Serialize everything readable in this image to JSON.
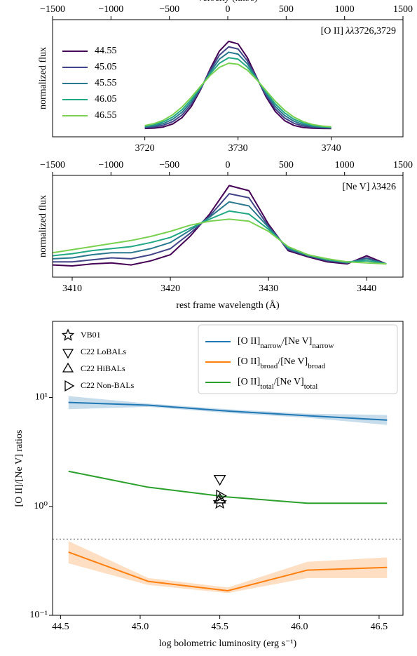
{
  "chart_data": [
    {
      "type": "line",
      "x2label": "velocity (km/s)",
      "ylabel": "normalized flux",
      "annotation_parts": [
        {
          "text": "[O II] "
        },
        {
          "text": "λλ",
          "italic": true
        },
        {
          "text": "3726,3729"
        }
      ],
      "x": [
        3720,
        3721,
        3722,
        3723,
        3724,
        3725,
        3726,
        3727,
        3728,
        3729,
        3730,
        3731,
        3732,
        3733,
        3734,
        3735,
        3736,
        3737,
        3738,
        3739,
        3740
      ],
      "xlim": [
        3710.1,
        3747.7
      ],
      "xticks": [
        3720,
        3730,
        3740
      ],
      "x2lim": [
        -1500,
        1500
      ],
      "x2ticks": [
        {
          "value": -1500,
          "label": "−1500"
        },
        {
          "value": -1000,
          "label": "−1000"
        },
        {
          "value": -500,
          "label": "−500"
        },
        0,
        500,
        1000,
        1500
      ],
      "ylim": [
        0,
        1
      ],
      "legend": "upper left",
      "series": [
        {
          "name": "44.55",
          "color": "#440154",
          "values": [
            0.071,
            0.074,
            0.084,
            0.11,
            0.164,
            0.26,
            0.405,
            0.577,
            0.732,
            0.815,
            0.793,
            0.676,
            0.507,
            0.342,
            0.216,
            0.138,
            0.097,
            0.079,
            0.073,
            0.071,
            0.07
          ]
        },
        {
          "name": "45.05",
          "color": "#414487",
          "values": [
            0.077,
            0.084,
            0.099,
            0.13,
            0.187,
            0.28,
            0.412,
            0.564,
            0.697,
            0.768,
            0.75,
            0.649,
            0.502,
            0.355,
            0.238,
            0.16,
            0.115,
            0.092,
            0.081,
            0.076,
            0.074
          ]
        },
        {
          "name": "45.55",
          "color": "#2a788e",
          "values": [
            0.084,
            0.094,
            0.113,
            0.15,
            0.21,
            0.3,
            0.419,
            0.55,
            0.663,
            0.722,
            0.706,
            0.623,
            0.498,
            0.369,
            0.26,
            0.182,
            0.133,
            0.104,
            0.089,
            0.082,
            0.078
          ]
        },
        {
          "name": "46.05",
          "color": "#22a884",
          "values": [
            0.09,
            0.103,
            0.128,
            0.169,
            0.232,
            0.319,
            0.426,
            0.537,
            0.628,
            0.675,
            0.663,
            0.596,
            0.493,
            0.382,
            0.281,
            0.204,
            0.15,
            0.117,
            0.097,
            0.087,
            0.081
          ]
        },
        {
          "name": "46.55",
          "color": "#7ad151",
          "values": [
            0.096,
            0.113,
            0.142,
            0.189,
            0.255,
            0.339,
            0.433,
            0.523,
            0.593,
            0.628,
            0.619,
            0.569,
            0.488,
            0.395,
            0.303,
            0.226,
            0.168,
            0.129,
            0.105,
            0.092,
            0.085
          ]
        }
      ]
    },
    {
      "type": "line",
      "xlabel": "rest frame wavelength (Å)",
      "ylabel": "normalized flux",
      "annotation_parts": [
        {
          "text": "[Ne V] "
        },
        {
          "text": "λ",
          "italic": true
        },
        {
          "text": "3426"
        }
      ],
      "x": [
        3408,
        3410,
        3412,
        3414,
        3416,
        3418,
        3420,
        3422,
        3424,
        3426,
        3428,
        3430,
        3432,
        3434,
        3436,
        3438,
        3440,
        3442
      ],
      "xlim": [
        3408,
        3443.7
      ],
      "xticks": [
        3410,
        3420,
        3430,
        3440
      ],
      "x2lim": [
        -1500,
        1500
      ],
      "x2ticks": [
        {
          "value": -1500,
          "label": "−1500"
        },
        {
          "value": -1000,
          "label": "−1000"
        },
        {
          "value": -500,
          "label": "−500"
        },
        0,
        500,
        1000,
        1500
      ],
      "ylim": [
        0,
        1
      ],
      "series": [
        {
          "color": "#440154",
          "values": [
            0.12,
            0.11,
            0.13,
            0.14,
            0.12,
            0.16,
            0.22,
            0.4,
            0.62,
            0.9,
            0.85,
            0.52,
            0.26,
            0.2,
            0.15,
            0.13,
            0.21,
            0.13
          ]
        },
        {
          "color": "#414487",
          "values": [
            0.15,
            0.15,
            0.17,
            0.19,
            0.18,
            0.22,
            0.28,
            0.43,
            0.6,
            0.82,
            0.78,
            0.5,
            0.27,
            0.21,
            0.16,
            0.14,
            0.19,
            0.13
          ]
        },
        {
          "color": "#2a788e",
          "values": [
            0.18,
            0.19,
            0.22,
            0.24,
            0.24,
            0.28,
            0.34,
            0.46,
            0.59,
            0.74,
            0.7,
            0.49,
            0.28,
            0.21,
            0.17,
            0.14,
            0.18,
            0.13
          ]
        },
        {
          "color": "#22a884",
          "values": [
            0.21,
            0.23,
            0.26,
            0.28,
            0.3,
            0.34,
            0.39,
            0.48,
            0.57,
            0.65,
            0.62,
            0.47,
            0.29,
            0.22,
            0.17,
            0.15,
            0.16,
            0.13
          ]
        },
        {
          "color": "#7ad151",
          "values": [
            0.24,
            0.27,
            0.3,
            0.33,
            0.36,
            0.4,
            0.45,
            0.51,
            0.55,
            0.57,
            0.55,
            0.45,
            0.3,
            0.22,
            0.18,
            0.15,
            0.14,
            0.13
          ]
        }
      ]
    },
    {
      "type": "line",
      "xlabel": "log bolometric luminosity (erg s⁻¹)",
      "ylabel": "[O II]/[Ne V] ratios",
      "log_y": true,
      "x": [
        44.55,
        45.05,
        45.55,
        46.05,
        46.55
      ],
      "xlim": [
        44.45,
        46.65
      ],
      "xticks": [
        44.5,
        {
          "value": 45,
          "label": "45.0"
        },
        45.5,
        {
          "value": 46,
          "label": "46.0"
        },
        46.5
      ],
      "ylim": [
        0.1,
        50
      ],
      "yticks": [
        {
          "value": 0.1,
          "label": "10⁻¹"
        },
        {
          "value": 1,
          "label": "10⁰"
        },
        {
          "value": 10,
          "label": "10¹"
        }
      ],
      "legend": "upper right",
      "series": [
        {
          "name_parts": [
            {
              "text": "[O II]"
            },
            {
              "text": "narrow",
              "sub": true
            },
            {
              "text": "/[Ne V]"
            },
            {
              "text": "narrow",
              "sub": true
            }
          ],
          "color": "#1f77b4",
          "values": [
            9.0,
            8.5,
            7.5,
            6.8,
            6.2
          ],
          "lower": [
            7.8,
            8.2,
            7.2,
            6.5,
            5.6
          ],
          "upper": [
            10.3,
            8.8,
            7.8,
            7.1,
            6.9
          ]
        },
        {
          "name_parts": [
            {
              "text": "[O II]"
            },
            {
              "text": "broad",
              "sub": true
            },
            {
              "text": "/[Ne V]"
            },
            {
              "text": "broad",
              "sub": true
            }
          ],
          "color": "#ff7f0e",
          "values": [
            0.38,
            0.205,
            0.168,
            0.26,
            0.275
          ],
          "lower": [
            0.3,
            0.19,
            0.16,
            0.22,
            0.22
          ],
          "upper": [
            0.48,
            0.22,
            0.18,
            0.31,
            0.34
          ]
        },
        {
          "name_parts": [
            {
              "text": "[O II]"
            },
            {
              "text": "total",
              "sub": true
            },
            {
              "text": "/[Ne V]"
            },
            {
              "text": "total",
              "sub": true
            }
          ],
          "color": "#2ca02c",
          "values": [
            2.1,
            1.5,
            1.22,
            1.07,
            1.07
          ]
        }
      ],
      "hlines": [
        {
          "value": 0.5,
          "color": "#888888",
          "style": "dotted"
        }
      ],
      "marker_legend": "upper left",
      "markers": [
        {
          "name": "VB01",
          "marker": "star",
          "x": 45.5,
          "value": 1.08
        },
        {
          "name": "C22 LoBALs",
          "marker": "triangle-down",
          "x": 45.5,
          "value": 1.8
        },
        {
          "name": "C22 HiBALs",
          "marker": "triangle-up",
          "x": 45.5,
          "value": 1.15
        },
        {
          "name": "C22 Non-BALs",
          "marker": "triangle-right",
          "x": 45.5,
          "value": 1.25
        }
      ]
    }
  ]
}
